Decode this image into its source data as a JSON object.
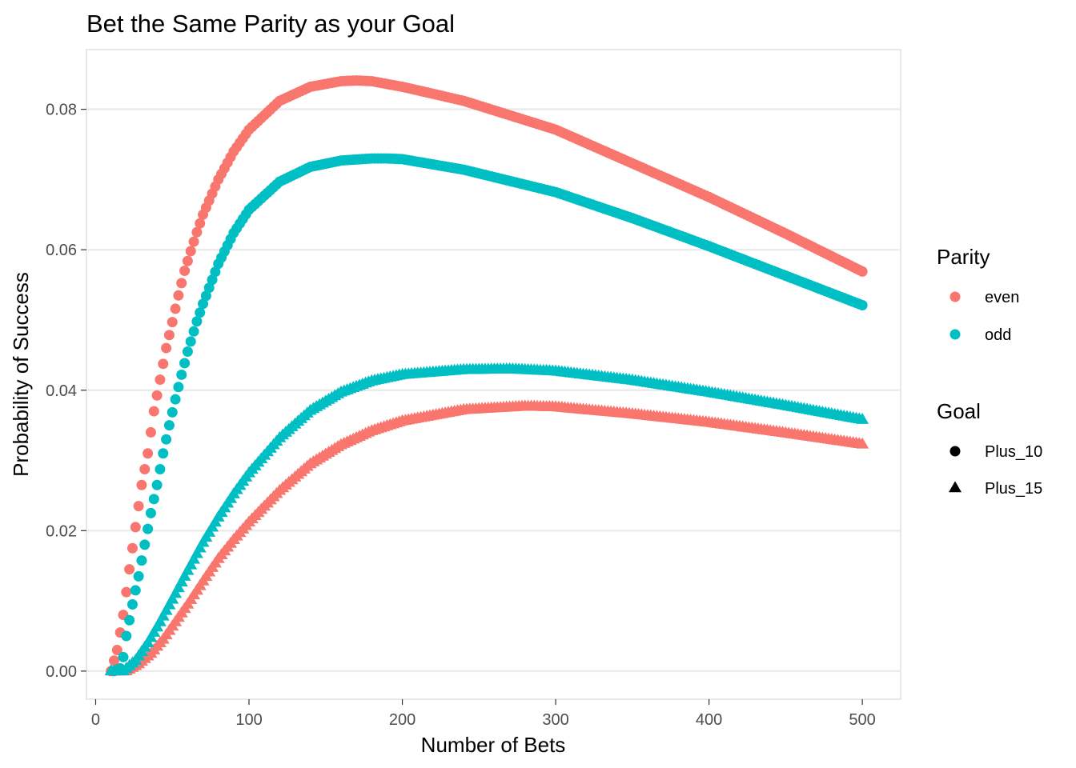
{
  "chart_data": {
    "type": "scatter",
    "title": "Bet the Same Parity as your Goal",
    "xlabel": "Number of Bets",
    "ylabel": "Probability of Success",
    "xlim": [
      -6,
      525
    ],
    "ylim": [
      -0.004,
      0.0885
    ],
    "x_ticks": [
      0,
      100,
      200,
      300,
      400,
      500
    ],
    "x_tick_labels": [
      "0",
      "100",
      "200",
      "300",
      "400",
      "500"
    ],
    "y_ticks": [
      0,
      0.02,
      0.04,
      0.06,
      0.08
    ],
    "y_tick_labels": [
      "0.00",
      "0.02",
      "0.04",
      "0.06",
      "0.08"
    ],
    "grid": true,
    "legend_placement": "right",
    "x_range": {
      "start": 10,
      "end": 500,
      "step": 2
    },
    "series": [
      {
        "parity": "even",
        "goal": "Plus_10",
        "color": "#F8766D",
        "shape": "circle",
        "curve": [
          [
            10,
            0.0
          ],
          [
            14,
            0.003
          ],
          [
            18,
            0.008
          ],
          [
            22,
            0.0145
          ],
          [
            26,
            0.0205
          ],
          [
            30,
            0.0265
          ],
          [
            34,
            0.031
          ],
          [
            38,
            0.037
          ],
          [
            42,
            0.0415
          ],
          [
            46,
            0.046
          ],
          [
            50,
            0.0497
          ],
          [
            54,
            0.0535
          ],
          [
            58,
            0.057
          ],
          [
            62,
            0.0598
          ],
          [
            66,
            0.0625
          ],
          [
            70,
            0.065
          ],
          [
            80,
            0.07
          ],
          [
            90,
            0.074
          ],
          [
            100,
            0.0771
          ],
          [
            120,
            0.0812
          ],
          [
            140,
            0.0832
          ],
          [
            160,
            0.084
          ],
          [
            170,
            0.0841
          ],
          [
            180,
            0.084
          ],
          [
            200,
            0.0832
          ],
          [
            240,
            0.0812
          ],
          [
            300,
            0.0771
          ],
          [
            350,
            0.0723
          ],
          [
            400,
            0.0675
          ],
          [
            450,
            0.0623
          ],
          [
            500,
            0.0569
          ]
        ]
      },
      {
        "parity": "odd",
        "goal": "Plus_10",
        "color": "#00BFC4",
        "shape": "circle",
        "curve": [
          [
            12,
            0.0
          ],
          [
            16,
            0.0004
          ],
          [
            18,
            0.002
          ],
          [
            20,
            0.005
          ],
          [
            24,
            0.0095
          ],
          [
            28,
            0.0135
          ],
          [
            32,
            0.018
          ],
          [
            36,
            0.0225
          ],
          [
            40,
            0.0265
          ],
          [
            44,
            0.031
          ],
          [
            48,
            0.035
          ],
          [
            52,
            0.0387
          ],
          [
            56,
            0.0422
          ],
          [
            60,
            0.0455
          ],
          [
            66,
            0.0498
          ],
          [
            70,
            0.0523
          ],
          [
            80,
            0.058
          ],
          [
            90,
            0.0624
          ],
          [
            100,
            0.0657
          ],
          [
            120,
            0.0697
          ],
          [
            140,
            0.0718
          ],
          [
            160,
            0.0727
          ],
          [
            180,
            0.073
          ],
          [
            190,
            0.073
          ],
          [
            200,
            0.0729
          ],
          [
            240,
            0.0714
          ],
          [
            300,
            0.0682
          ],
          [
            350,
            0.0645
          ],
          [
            400,
            0.0605
          ],
          [
            450,
            0.0563
          ],
          [
            500,
            0.0521
          ]
        ]
      },
      {
        "parity": "even",
        "goal": "Plus_15",
        "color": "#F8766D",
        "shape": "triangle",
        "curve": [
          [
            8,
            0.0
          ],
          [
            20,
            0.0
          ],
          [
            28,
            0.001
          ],
          [
            36,
            0.0025
          ],
          [
            44,
            0.0045
          ],
          [
            52,
            0.007
          ],
          [
            60,
            0.0095
          ],
          [
            70,
            0.0128
          ],
          [
            80,
            0.016
          ],
          [
            90,
            0.0187
          ],
          [
            100,
            0.0212
          ],
          [
            120,
            0.0257
          ],
          [
            140,
            0.0295
          ],
          [
            160,
            0.0322
          ],
          [
            180,
            0.0342
          ],
          [
            200,
            0.0356
          ],
          [
            240,
            0.0372
          ],
          [
            280,
            0.0377
          ],
          [
            300,
            0.0376
          ],
          [
            350,
            0.0366
          ],
          [
            400,
            0.0354
          ],
          [
            450,
            0.0339
          ],
          [
            500,
            0.0323
          ]
        ]
      },
      {
        "parity": "odd",
        "goal": "Plus_15",
        "color": "#00BFC4",
        "shape": "triangle",
        "curve": [
          [
            8,
            0.0
          ],
          [
            18,
            0.0
          ],
          [
            26,
            0.0015
          ],
          [
            34,
            0.004
          ],
          [
            42,
            0.007
          ],
          [
            50,
            0.0102
          ],
          [
            60,
            0.0143
          ],
          [
            70,
            0.0183
          ],
          [
            80,
            0.0219
          ],
          [
            90,
            0.0252
          ],
          [
            100,
            0.0282
          ],
          [
            120,
            0.0332
          ],
          [
            140,
            0.0371
          ],
          [
            160,
            0.0397
          ],
          [
            180,
            0.0413
          ],
          [
            200,
            0.0422
          ],
          [
            240,
            0.0429
          ],
          [
            270,
            0.043
          ],
          [
            300,
            0.0427
          ],
          [
            350,
            0.0414
          ],
          [
            400,
            0.0397
          ],
          [
            450,
            0.0378
          ],
          [
            500,
            0.0358
          ]
        ]
      }
    ],
    "legends": [
      {
        "title": "Parity",
        "items": [
          {
            "label": "even",
            "color": "#F8766D",
            "shape": "circle"
          },
          {
            "label": "odd",
            "color": "#00BFC4",
            "shape": "circle"
          }
        ]
      },
      {
        "title": "Goal",
        "items": [
          {
            "label": "Plus_10",
            "color": "#000000",
            "shape": "circle"
          },
          {
            "label": "Plus_15",
            "color": "#000000",
            "shape": "triangle"
          }
        ]
      }
    ]
  }
}
